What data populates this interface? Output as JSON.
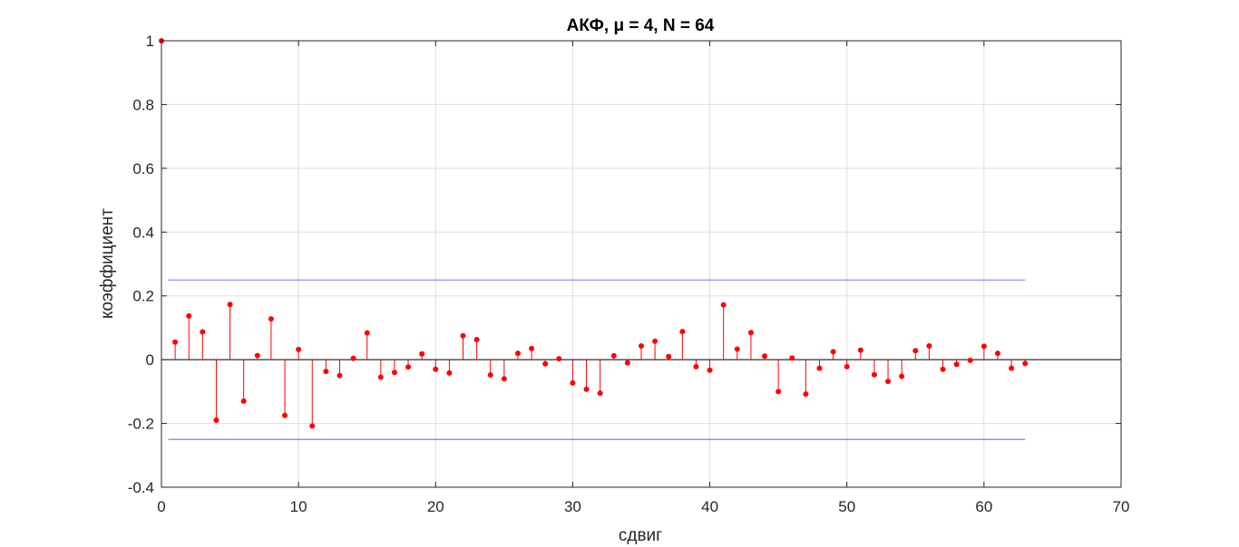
{
  "chart_data": {
    "type": "stem",
    "title": "АКФ, μ = 4, N = 64",
    "xlabel": "сдвиг",
    "ylabel": "коэффициент",
    "xlim": [
      0,
      70
    ],
    "ylim": [
      -0.4,
      1
    ],
    "xticks": [
      0,
      10,
      20,
      30,
      40,
      50,
      60,
      70
    ],
    "yticks": [
      -0.4,
      -0.2,
      0,
      0.2,
      0.4,
      0.6,
      0.8,
      1
    ],
    "grid": true,
    "series": [
      {
        "x": [
          0,
          1,
          2,
          3,
          4,
          5,
          6,
          7,
          8,
          9,
          10,
          11,
          12,
          13,
          14,
          15,
          16,
          17,
          18,
          19,
          20,
          21,
          22,
          23,
          24,
          25,
          26,
          27,
          28,
          29,
          30,
          31,
          32,
          33,
          34,
          35,
          36,
          37,
          38,
          39,
          40,
          41,
          42,
          43,
          44,
          45,
          46,
          47,
          48,
          49,
          50,
          51,
          52,
          53,
          54,
          55,
          56,
          57,
          58,
          59,
          60,
          61,
          62,
          63
        ],
        "values": [
          1.0,
          0.055,
          0.137,
          0.087,
          -0.19,
          0.173,
          -0.13,
          0.013,
          0.128,
          -0.175,
          0.032,
          -0.208,
          -0.037,
          -0.05,
          0.004,
          0.084,
          -0.055,
          -0.04,
          -0.023,
          0.018,
          -0.03,
          -0.042,
          0.075,
          0.063,
          -0.048,
          -0.06,
          0.02,
          0.035,
          -0.013,
          0.003,
          -0.073,
          -0.093,
          -0.105,
          0.012,
          -0.01,
          0.043,
          0.058,
          0.01,
          0.088,
          -0.022,
          -0.033,
          0.172,
          0.033,
          0.085,
          0.011,
          -0.1,
          0.005,
          -0.108,
          -0.027,
          0.025,
          -0.022,
          0.03,
          -0.047,
          -0.068,
          -0.052,
          0.028,
          0.043,
          -0.03,
          -0.015,
          -0.002,
          0.042,
          0.02,
          -0.027,
          -0.012
        ]
      }
    ],
    "reference_lines": [
      {
        "y": 0.25,
        "x_range": [
          0.5,
          63
        ]
      },
      {
        "y": -0.25,
        "x_range": [
          0.5,
          63
        ]
      },
      {
        "y": 0,
        "x_range": [
          0,
          70
        ]
      }
    ],
    "colors": {
      "stem": "#ff0000",
      "reference": "#0000ff",
      "zero_line": "#000000",
      "grid": "#dfdfdf",
      "axis": "#262626"
    }
  }
}
